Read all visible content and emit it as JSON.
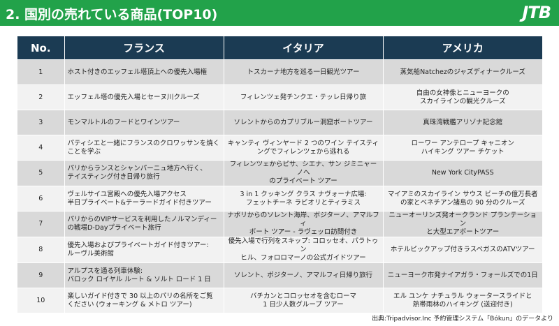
{
  "header": {
    "title": "2. 国別の売れている商品(TOP10)",
    "logo": "JTB"
  },
  "table": {
    "columns": [
      "No.",
      "フランス",
      "イタリア",
      "アメリカ"
    ],
    "rows": [
      {
        "no": "1",
        "france": "ホスト付きのエッフェル塔頂上への優先入場権",
        "italy": "トスカーナ地方を巡る一日観光ツアー",
        "usa": "蒸気船Natchezのジャズディナークルーズ"
      },
      {
        "no": "2",
        "france": "エッフェル塔の優先入場とセーヌ川クルーズ",
        "italy": "フィレンツェ発チンクエ・テッレ日帰り旅",
        "usa": "自由の女神像とニューヨークの\nスカイラインの観光クルーズ"
      },
      {
        "no": "3",
        "france": "モンマルトルのフードとワインツアー",
        "italy": "ソレントからのカプリブルー洞窟ボートツアー",
        "usa": "真珠湾戦艦アリゾナ記念館"
      },
      {
        "no": "4",
        "france": "パティシエと一緒にフランスのクロワッサンを焼く\nことを学ぶ",
        "italy": "キャンティ ヴィンヤード 2 つのワイン テイスティ\nングでフィレンツェから逃れる",
        "usa": "ローワー アンテロープ キャニオン\nハイキング ツアー チケット"
      },
      {
        "no": "5",
        "france": "パリからランスとシャンパーニュ地方へ行く、\nテイスティング付き日帰り旅行",
        "italy": "フィレンツェからピサ、シエナ、サン ジミニャーノへ\nのプライベート ツアー",
        "usa": "New York CityPASS"
      },
      {
        "no": "6",
        "france": "ヴェルサイユ宮殿への優先入場アクセス\n半日プライベート&テーラードガイド付きツアー",
        "italy": "3 in 1 クッキング クラス ナヴォーナ広場:\nフェットチーネ ラビオリとティラミス",
        "usa": "マイアミのスカイライン サウス ビーチの億万長者\nの家とベネチアン諸島の 90 分のクルーズ"
      },
      {
        "no": "7",
        "france": "パリからのVIPサービスを利用したノルマンディー\nの戦場D-Dayプライベート旅行",
        "italy": "ナポリからのソレント海岸、ポジターノ、アマルフィ\nボート ツアー - ラヴェッロ訪問付き",
        "usa": "ニューオーリンズ発オークランド プランテーション\nと大型エアボートツアー"
      },
      {
        "no": "8",
        "france": "優先入場およびプライベートガイド付きツアー:\nルーヴル美術館",
        "italy": "優先入場で行列をスキップ: コロッセオ、パラトゥン\nヒル、フォロロマーノの公式ガイドツアー",
        "usa": "ホテルピックアップ付きラスベガスのATVツアー"
      },
      {
        "no": "9",
        "france": "アルプスを通る列車体験:\nバロック ロイヤル ルート & ソルト ロード 1 日",
        "italy": "ソレント、ポジターノ、アマルフィ日帰り旅行",
        "usa": "ニューヨーク市発ナイアガラ・フォールズでの1日"
      },
      {
        "no": "10",
        "france": "楽しいガイド付きで 30 以上のパリの名所をご覧\nください (ウォーキング & メトロ ツアー)",
        "italy": "バチカンとコロッセオを含むローマ\n1 日少人数グループ ツアー",
        "usa": "エル ユンケ ナチュラル ウォータースライドと\n熱帯雨林のハイキング (送迎付き)"
      }
    ]
  },
  "footer": {
    "source": "出典:Tripadvisor.Inc 予約管理システム「Bókun」のデータより"
  },
  "colors": {
    "title_bg": "#22a24a",
    "header_bg": "#1b3b53",
    "row_odd": "#d9d9d9",
    "row_even": "#f2f2f2"
  }
}
